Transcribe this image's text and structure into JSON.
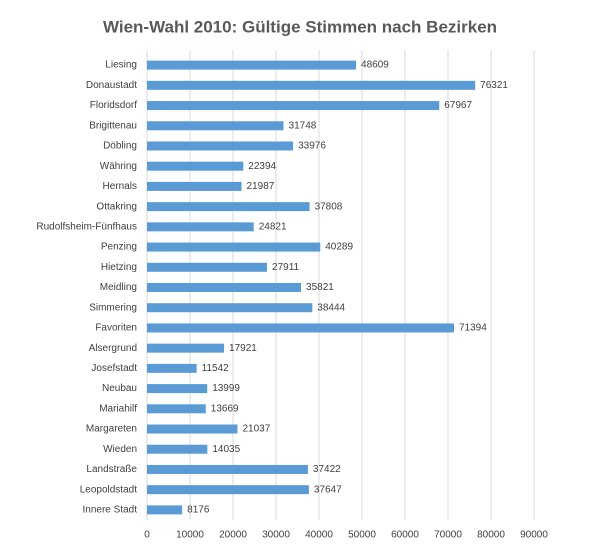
{
  "chart_data": {
    "type": "bar",
    "orientation": "horizontal",
    "title": "Wien-Wahl 2010: Gültige Stimmen nach Bezirken",
    "categories": [
      "Liesing",
      "Donaustadt",
      "Floridsdorf",
      "Brigittenau",
      "Döbling",
      "Währing",
      "Hernals",
      "Ottakring",
      "Rudolfsheim-Fünfhaus",
      "Penzing",
      "Hietzing",
      "Meidling",
      "Simmering",
      "Favoriten",
      "Alsergrund",
      "Josefstadt",
      "Neubau",
      "Mariahilf",
      "Margareten",
      "Wieden",
      "Landstraße",
      "Leopoldstadt",
      "Innere Stadt"
    ],
    "values": [
      48609,
      76321,
      67967,
      31748,
      33976,
      22394,
      21987,
      37808,
      24821,
      40289,
      27911,
      35821,
      38444,
      71394,
      17921,
      11542,
      13999,
      13669,
      21037,
      14035,
      37422,
      37647,
      8176
    ],
    "color": "#5b9bd5",
    "xlim": [
      0,
      90000
    ],
    "xticks": [
      0,
      10000,
      20000,
      30000,
      40000,
      50000,
      60000,
      70000,
      80000,
      90000
    ],
    "grid": true
  }
}
